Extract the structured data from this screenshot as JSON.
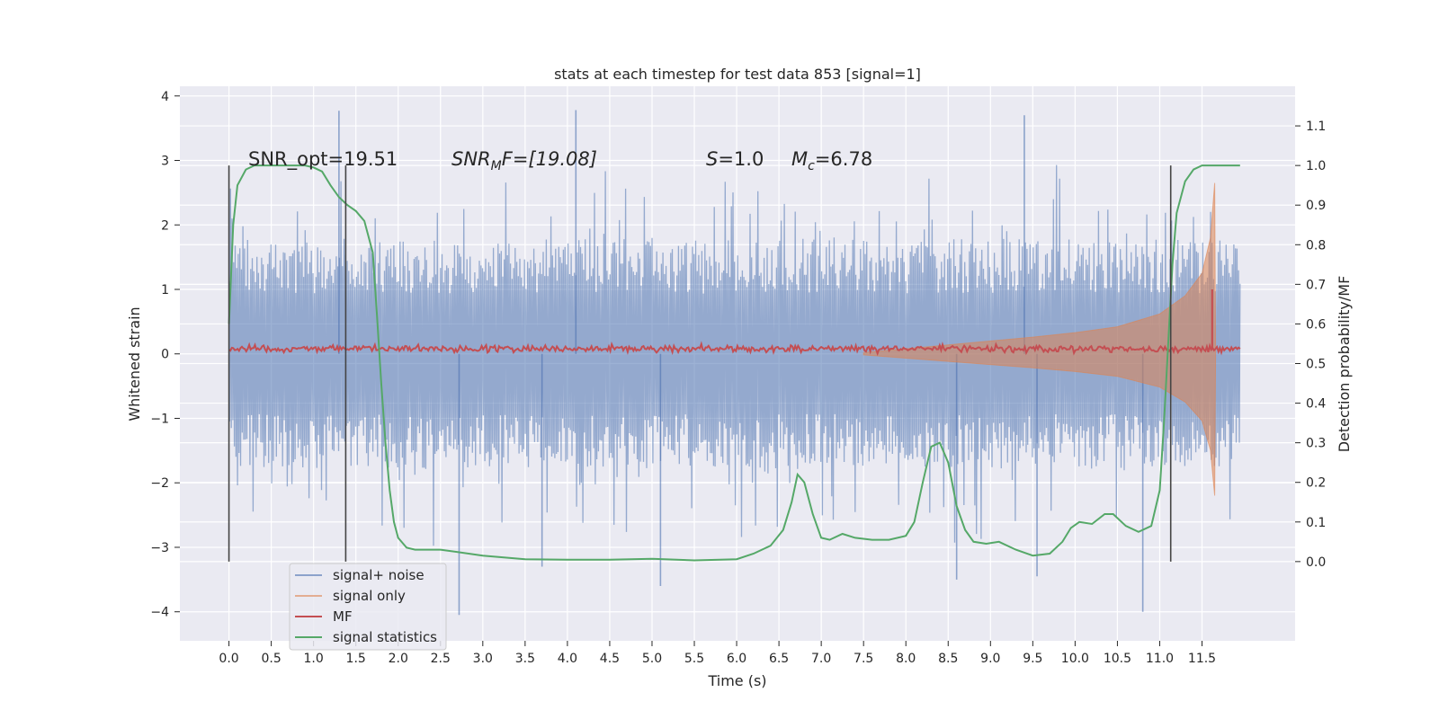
{
  "chart_data": {
    "type": "line",
    "title": "stats at each timestep for test data 853 [signal=1]",
    "xlabel": "Time (s)",
    "ylabel": "Whitened strain",
    "y2label": "Detection probability/MF",
    "xlim": [
      -0.58,
      12.6
    ],
    "ylim": [
      -4.45,
      4.15
    ],
    "y2lim": [
      -0.2,
      1.2
    ],
    "x_ticks": [
      "0.0",
      "0.5",
      "1.0",
      "1.5",
      "2.0",
      "2.5",
      "3.0",
      "3.5",
      "4.0",
      "4.5",
      "5.0",
      "5.5",
      "6.0",
      "6.5",
      "7.0",
      "7.5",
      "8.0",
      "8.5",
      "9.0",
      "9.5",
      "10.0",
      "10.5",
      "11.0",
      "11.5"
    ],
    "y_ticks": [
      "−4",
      "−3",
      "−2",
      "−1",
      "0",
      "1",
      "2",
      "3",
      "4"
    ],
    "y2_ticks": [
      "0.0",
      "0.1",
      "0.2",
      "0.3",
      "0.4",
      "0.5",
      "0.6",
      "0.7",
      "0.8",
      "0.9",
      "1.0",
      "1.1"
    ],
    "grid": true,
    "legend_position": "lower-left",
    "annotations": {
      "snr_opt": "SNR_opt=19.51",
      "snr_mf_main": "SNR",
      "snr_mf_sub": "M",
      "snr_mf_rest": "F=[19.08]",
      "s_italic": "S",
      "s_rest": "=1.0",
      "mc_main": "M",
      "mc_sub": "c",
      "mc_rest": "=6.78"
    },
    "vertical_lines_x": [
      0.0,
      1.38,
      11.13
    ],
    "series": [
      {
        "name": "signal+ noise",
        "color": "#4c72b0",
        "axis": "left",
        "description_bounds": {
          "x_start": 0.0,
          "x_end": 11.95
        },
        "envelope": {
          "typical_low": -1.7,
          "typical_high": 1.7,
          "peak_high": 3.8,
          "peak_low": -4.1
        },
        "spikes": [
          {
            "x": 1.3,
            "y": 3.77
          },
          {
            "x": 4.1,
            "y": 3.78
          },
          {
            "x": 9.4,
            "y": 3.7
          },
          {
            "x": 2.72,
            "y": -4.05
          },
          {
            "x": 10.8,
            "y": -4.0
          },
          {
            "x": 5.1,
            "y": -3.6
          },
          {
            "x": 8.6,
            "y": -3.5
          },
          {
            "x": 3.7,
            "y": -3.3
          },
          {
            "x": 9.55,
            "y": -3.45
          }
        ]
      },
      {
        "name": "signal only",
        "color": "#dd8452",
        "axis": "left",
        "envelope_points": [
          {
            "x": 7.5,
            "amp": 0.02
          },
          {
            "x": 8.5,
            "amp": 0.14
          },
          {
            "x": 9.5,
            "amp": 0.26
          },
          {
            "x": 10.0,
            "amp": 0.33
          },
          {
            "x": 10.5,
            "amp": 0.42
          },
          {
            "x": 11.0,
            "amp": 0.62
          },
          {
            "x": 11.3,
            "amp": 0.9
          },
          {
            "x": 11.5,
            "amp": 1.25
          },
          {
            "x": 11.6,
            "amp": 1.8
          },
          {
            "x": 11.65,
            "amp": 2.65
          },
          {
            "x": 11.66,
            "amp": 0.0
          }
        ]
      },
      {
        "name": "MF",
        "color": "#c44e52",
        "axis": "left",
        "baseline": 0.08,
        "noise_amp": 0.06,
        "x_end": 11.95,
        "spike": {
          "x": 11.62,
          "y": 1.0
        }
      },
      {
        "name": "signal statistics",
        "color": "#55a868",
        "axis": "right",
        "points": [
          [
            0.0,
            0.6
          ],
          [
            0.05,
            0.85
          ],
          [
            0.1,
            0.95
          ],
          [
            0.2,
            0.99
          ],
          [
            0.3,
            1.0
          ],
          [
            0.5,
            1.0
          ],
          [
            0.7,
            1.0
          ],
          [
            0.9,
            1.0
          ],
          [
            1.0,
            0.995
          ],
          [
            1.1,
            0.985
          ],
          [
            1.2,
            0.95
          ],
          [
            1.3,
            0.92
          ],
          [
            1.4,
            0.9
          ],
          [
            1.5,
            0.885
          ],
          [
            1.6,
            0.86
          ],
          [
            1.7,
            0.78
          ],
          [
            1.75,
            0.62
          ],
          [
            1.8,
            0.45
          ],
          [
            1.85,
            0.3
          ],
          [
            1.9,
            0.18
          ],
          [
            1.95,
            0.1
          ],
          [
            2.0,
            0.06
          ],
          [
            2.1,
            0.035
          ],
          [
            2.2,
            0.03
          ],
          [
            2.5,
            0.03
          ],
          [
            3.0,
            0.015
          ],
          [
            3.5,
            0.006
          ],
          [
            4.0,
            0.005
          ],
          [
            4.5,
            0.005
          ],
          [
            5.0,
            0.007
          ],
          [
            5.5,
            0.003
          ],
          [
            6.0,
            0.006
          ],
          [
            6.2,
            0.02
          ],
          [
            6.4,
            0.04
          ],
          [
            6.55,
            0.08
          ],
          [
            6.65,
            0.15
          ],
          [
            6.72,
            0.22
          ],
          [
            6.8,
            0.2
          ],
          [
            6.9,
            0.12
          ],
          [
            7.0,
            0.06
          ],
          [
            7.1,
            0.055
          ],
          [
            7.25,
            0.07
          ],
          [
            7.4,
            0.06
          ],
          [
            7.6,
            0.055
          ],
          [
            7.8,
            0.055
          ],
          [
            8.0,
            0.065
          ],
          [
            8.1,
            0.1
          ],
          [
            8.2,
            0.2
          ],
          [
            8.3,
            0.29
          ],
          [
            8.4,
            0.3
          ],
          [
            8.5,
            0.25
          ],
          [
            8.6,
            0.14
          ],
          [
            8.7,
            0.08
          ],
          [
            8.8,
            0.05
          ],
          [
            8.95,
            0.045
          ],
          [
            9.1,
            0.05
          ],
          [
            9.3,
            0.03
          ],
          [
            9.5,
            0.015
          ],
          [
            9.7,
            0.02
          ],
          [
            9.85,
            0.05
          ],
          [
            9.95,
            0.085
          ],
          [
            10.05,
            0.1
          ],
          [
            10.2,
            0.095
          ],
          [
            10.35,
            0.12
          ],
          [
            10.45,
            0.12
          ],
          [
            10.6,
            0.09
          ],
          [
            10.75,
            0.075
          ],
          [
            10.9,
            0.09
          ],
          [
            11.0,
            0.18
          ],
          [
            11.05,
            0.35
          ],
          [
            11.1,
            0.55
          ],
          [
            11.15,
            0.75
          ],
          [
            11.2,
            0.88
          ],
          [
            11.3,
            0.96
          ],
          [
            11.4,
            0.99
          ],
          [
            11.5,
            1.0
          ],
          [
            11.95,
            1.0
          ]
        ]
      }
    ]
  }
}
